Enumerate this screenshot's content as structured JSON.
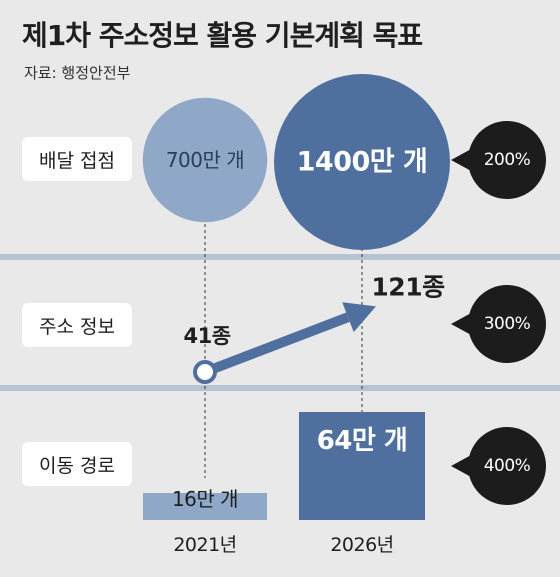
{
  "title": "제1차 주소정보 활용 기본계획 목표",
  "source": "자료: 행정안전부",
  "colors": {
    "background": "#e9e9e9",
    "light_blue": "#8fa8c8",
    "dark_blue": "#4f6f9e",
    "badge": "#1c1c1c",
    "separator": "#b7c3d2"
  },
  "chart_data": {
    "type": "bar",
    "categories": [
      "2021년",
      "2026년"
    ],
    "rows": [
      {
        "label": "배달 접점",
        "mark": "bubble",
        "values": [
          700,
          1400
        ],
        "value_labels": [
          "700만 개",
          "1400만 개"
        ],
        "growth": "200%"
      },
      {
        "label": "주소 정보",
        "mark": "arrow",
        "values": [
          41,
          121
        ],
        "value_labels": [
          "41종",
          "121종"
        ],
        "growth": "300%"
      },
      {
        "label": "이동 경로",
        "mark": "bar",
        "values": [
          16,
          64
        ],
        "value_labels": [
          "16만 개",
          "64만 개"
        ],
        "growth": "400%"
      }
    ]
  }
}
